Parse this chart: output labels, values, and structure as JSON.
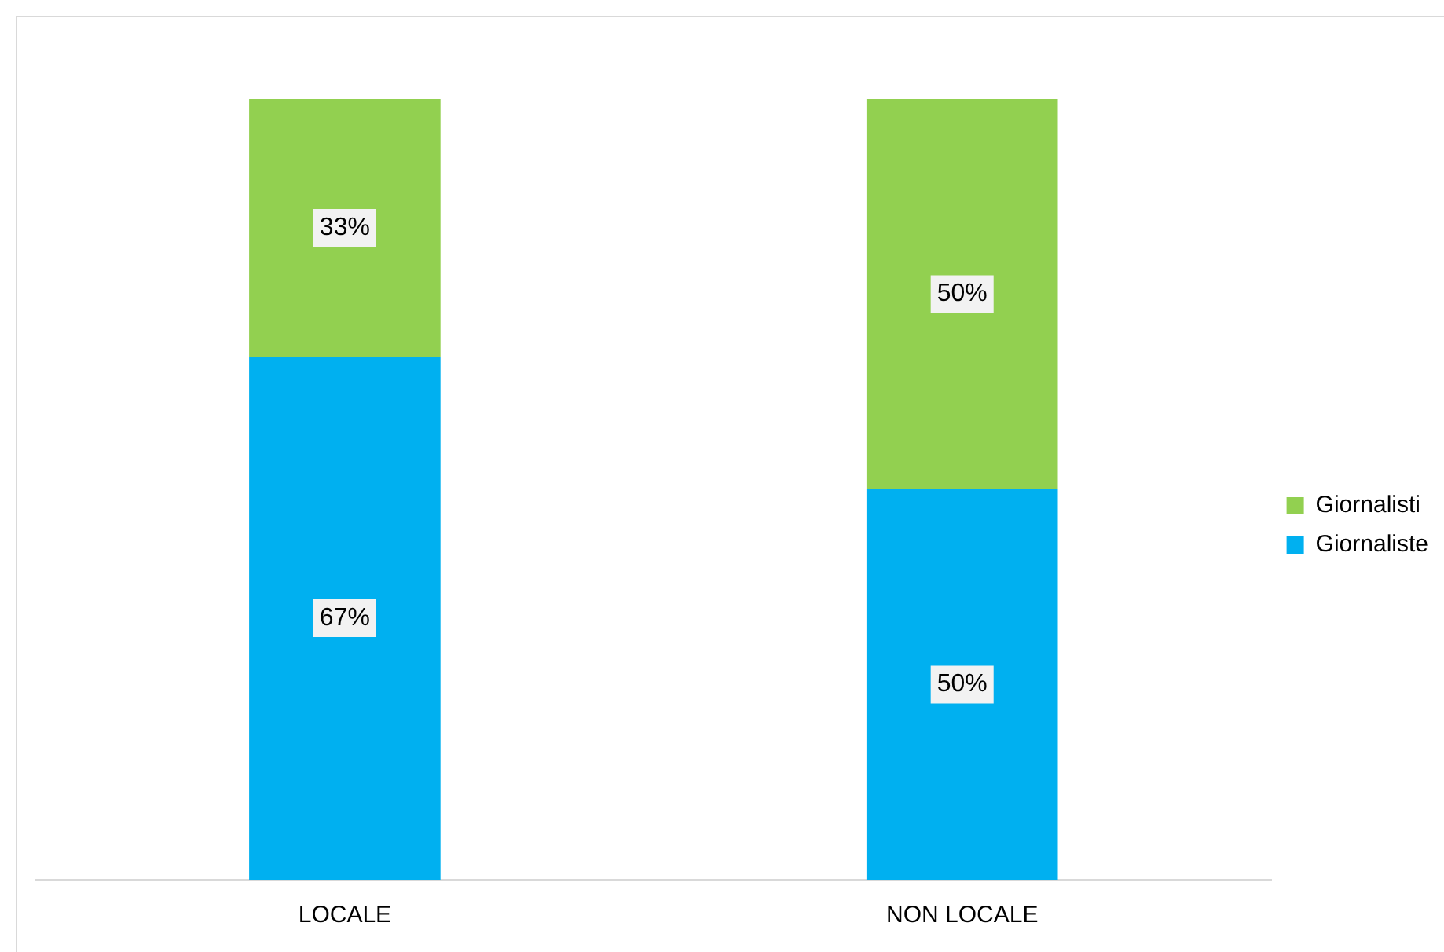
{
  "chart_data": {
    "type": "bar",
    "stacked": true,
    "categories": [
      "LOCALE",
      "NON LOCALE"
    ],
    "series": [
      {
        "name": "Giornaliste",
        "color": "#00b0f0",
        "values": [
          67,
          50
        ],
        "value_labels": [
          "67%",
          "50%"
        ]
      },
      {
        "name": "Giornalisti",
        "color": "#92d050",
        "values": [
          33,
          50
        ],
        "value_labels": [
          "33%",
          "50%"
        ]
      }
    ],
    "grid": false,
    "legend": "right",
    "tick_labels": "x"
  }
}
